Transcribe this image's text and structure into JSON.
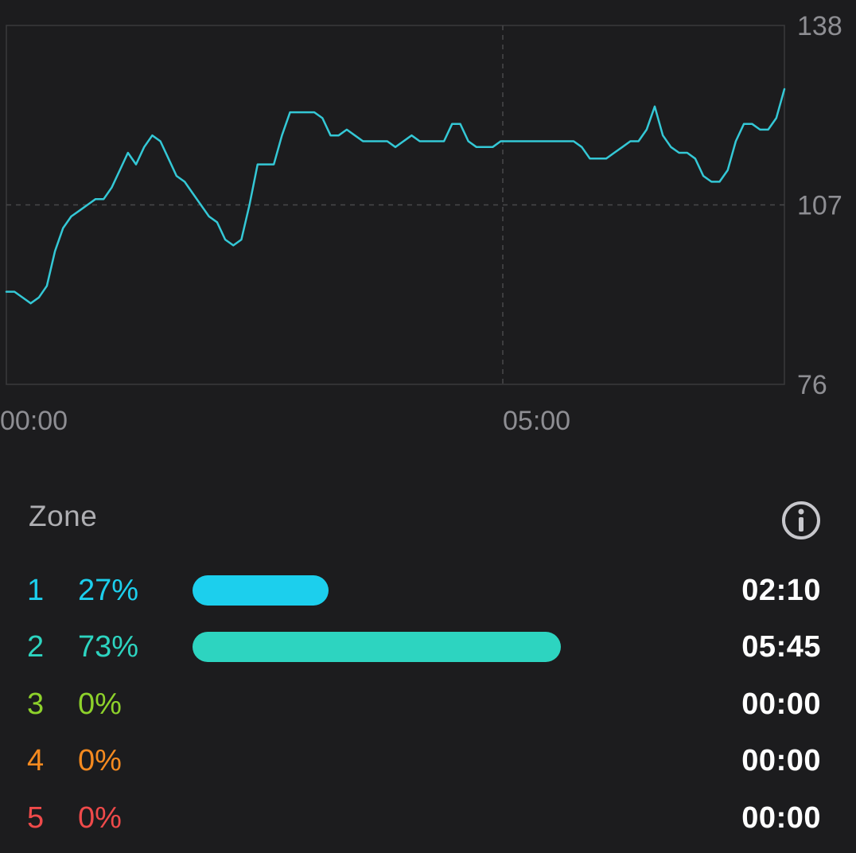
{
  "chart_data": {
    "type": "line",
    "title": "",
    "xlabel": "",
    "ylabel": "",
    "x_ticks": [
      "00:00",
      "05:00"
    ],
    "y_ticks": [
      76,
      107,
      138
    ],
    "ylim": [
      76,
      138
    ],
    "grid": "dashed reference lines at 05:00 and 107",
    "line_color": "#34c8d6",
    "series": [
      {
        "values": [
          92,
          92,
          91,
          90,
          91,
          93,
          99,
          103,
          105,
          106,
          107,
          108,
          108,
          110,
          113,
          116,
          114,
          117,
          119,
          118,
          115,
          112,
          111,
          109,
          107,
          105,
          104,
          101,
          100,
          101,
          107,
          114,
          114,
          114,
          119,
          123,
          123,
          123,
          123,
          122,
          119,
          119,
          120,
          119,
          118,
          118,
          118,
          118,
          117,
          118,
          119,
          118,
          118,
          118,
          118,
          121,
          121,
          118,
          117,
          117,
          117,
          118,
          118,
          118,
          118,
          118,
          118,
          118,
          118,
          118,
          118,
          117,
          115,
          115,
          115,
          116,
          117,
          118,
          118,
          120,
          124,
          119,
          117,
          116,
          116,
          115,
          112,
          111,
          111,
          113,
          118,
          121,
          121,
          120,
          120,
          122,
          127
        ]
      }
    ]
  },
  "zones": {
    "header": "Zone",
    "info_icon": "info-circle-icon",
    "rows": [
      {
        "num": "1",
        "pct": "27%",
        "fraction": 0.27,
        "time": "02:10",
        "color": "#1ccfed"
      },
      {
        "num": "2",
        "pct": "73%",
        "fraction": 0.73,
        "time": "05:45",
        "color": "#2dd4c0"
      },
      {
        "num": "3",
        "pct": "0%",
        "fraction": 0,
        "time": "00:00",
        "color": "#8ed22b"
      },
      {
        "num": "4",
        "pct": "0%",
        "fraction": 0,
        "time": "00:00",
        "color": "#f58a1f"
      },
      {
        "num": "5",
        "pct": "0%",
        "fraction": 0,
        "time": "00:00",
        "color": "#ef4a4a"
      }
    ]
  }
}
